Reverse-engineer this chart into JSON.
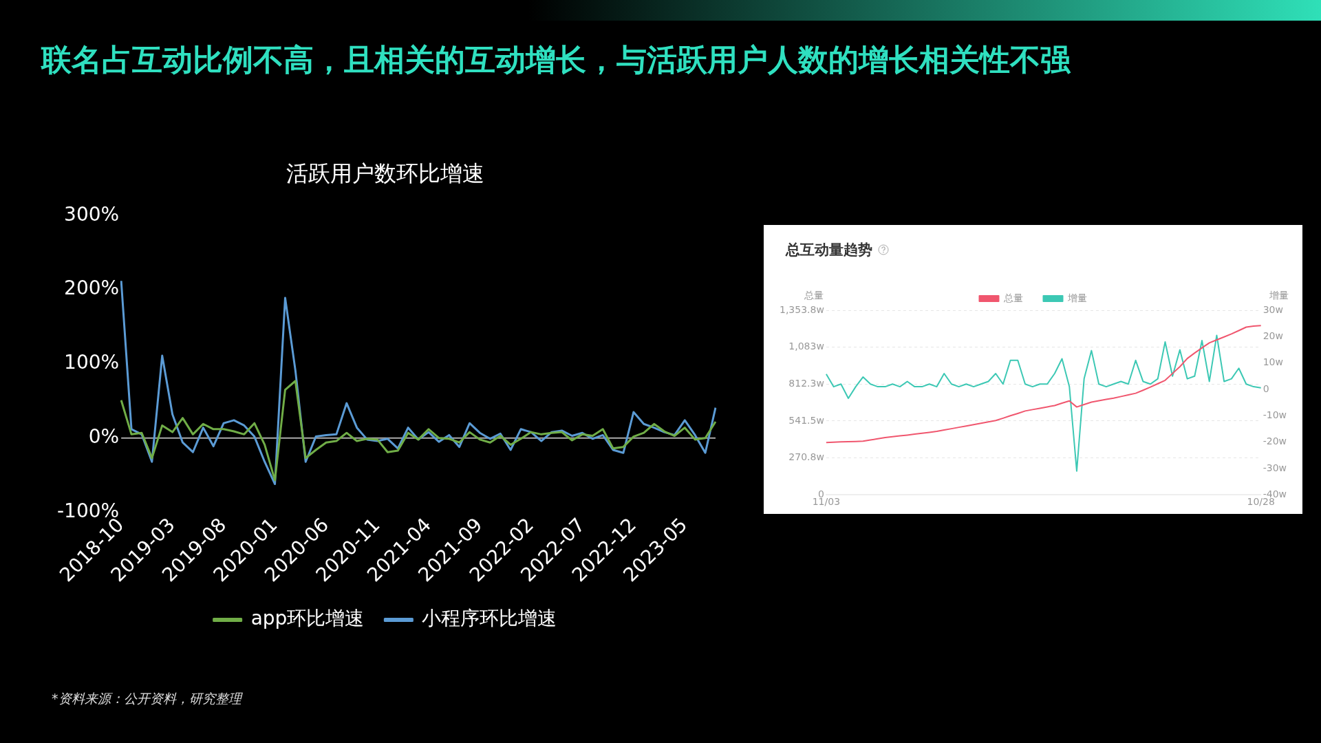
{
  "chart_data": [
    {
      "type": "line",
      "title": "活跃用户数环比增速",
      "categories": [
        "2018-10",
        null,
        null,
        null,
        null,
        "2019-03",
        null,
        null,
        null,
        null,
        "2019-08",
        null,
        null,
        null,
        null,
        "2020-01",
        null,
        null,
        null,
        null,
        "2020-06",
        null,
        null,
        null,
        null,
        "2020-11",
        null,
        null,
        null,
        null,
        "2021-04",
        null,
        null,
        null,
        null,
        "2021-09",
        null,
        null,
        null,
        null,
        "2022-02",
        null,
        null,
        null,
        null,
        "2022-07",
        null,
        null,
        null,
        null,
        "2022-12",
        null,
        null,
        null,
        null,
        "2023-05",
        null,
        null,
        null
      ],
      "series": [
        {
          "name": "app环比增速",
          "color": "#70ad47",
          "values": [
            51,
            5,
            7,
            -27,
            17,
            8,
            27,
            5,
            19,
            12,
            12,
            9,
            5,
            20,
            -9,
            -57,
            65,
            77,
            -27,
            -16,
            -6,
            -4,
            7,
            -4,
            -1,
            -2,
            -19,
            -17,
            7,
            -2,
            12,
            0,
            -1,
            -6,
            8,
            -2,
            -6,
            3,
            -9,
            -1,
            8,
            5,
            7,
            8,
            -3,
            5,
            3,
            12,
            -14,
            -12,
            2,
            7,
            19,
            9,
            3,
            14,
            -2,
            0,
            22
          ]
        },
        {
          "name": "小程序环比增速",
          "color": "#5b9bd5",
          "values": [
            212,
            12,
            5,
            -32,
            111,
            32,
            -6,
            -19,
            14,
            -11,
            20,
            24,
            17,
            2,
            -32,
            -62,
            189,
            91,
            -32,
            2,
            4,
            5,
            47,
            14,
            -2,
            -4,
            -1,
            -14,
            14,
            -2,
            8,
            -5,
            4,
            -12,
            20,
            7,
            -1,
            6,
            -16,
            12,
            8,
            -4,
            8,
            10,
            3,
            7,
            -1,
            4,
            -16,
            -20,
            35,
            19,
            14,
            8,
            4,
            24,
            4,
            -20,
            41
          ]
        }
      ],
      "ylim": [
        -100,
        300
      ],
      "yticks": [
        {
          "value": -100,
          "label": "-100%"
        },
        {
          "value": 0,
          "label": "0%"
        },
        {
          "value": 100,
          "label": "100%"
        },
        {
          "value": 200,
          "label": "200%"
        },
        {
          "value": 300,
          "label": "300%"
        }
      ],
      "legend": "bottom",
      "ref_lines": [
        {
          "axis": "y",
          "value": 0,
          "color": "#aaaaaa"
        }
      ],
      "annotations": [
        "联名占互动比例不高，且相关的互动增长，与活跃用户人数的增长相关性不强",
        "*资料来源：公开资料，研究整理"
      ]
    },
    {
      "type": "line",
      "title": "总互动量趋势",
      "ylabel": "总量",
      "y2label": "增量",
      "categories": [
        "11/03",
        null,
        null,
        null,
        null,
        null,
        null,
        null,
        null,
        null,
        null,
        null,
        null,
        null,
        null,
        null,
        null,
        null,
        null,
        null,
        null,
        null,
        null,
        null,
        null,
        null,
        null,
        null,
        null,
        null,
        null,
        null,
        null,
        null,
        null,
        null,
        null,
        null,
        null,
        null,
        null,
        null,
        null,
        null,
        null,
        null,
        null,
        null,
        null,
        null,
        null,
        null,
        null,
        null,
        null,
        null,
        null,
        null,
        null,
        "10/28"
      ],
      "series": [
        {
          "name": "总量",
          "color": "#f0566e",
          "values": [
            384,
            386,
            388,
            390,
            391,
            393,
            402,
            411,
            420,
            426,
            432,
            438,
            445,
            452,
            458,
            465,
            475,
            485,
            495,
            505,
            515,
            525,
            535,
            545,
            562,
            580,
            597,
            615,
            625,
            635,
            645,
            655,
            672,
            689,
            644,
            662,
            680,
            690,
            700,
            709,
            721,
            733,
            745,
            767,
            790,
            815,
            840,
            890,
            940,
            1000,
            1040,
            1078,
            1115,
            1137,
            1158,
            1180,
            1205,
            1230,
            1238,
            1242
          ]
        },
        {
          "name": "增量",
          "color": "#3cc8b4",
          "axis": "y2",
          "values": [
            5.8,
            1,
            2,
            -3.4,
            1,
            4.7,
            2,
            1,
            1,
            2,
            1,
            3,
            1,
            1,
            2,
            1,
            6,
            2,
            1,
            2,
            1,
            2,
            3,
            6,
            2,
            11,
            11,
            2,
            1,
            2,
            2,
            6,
            11.6,
            1,
            -31,
            4,
            14.7,
            2,
            1,
            2,
            3,
            2,
            11,
            3,
            2,
            4,
            18,
            5,
            15,
            4,
            5,
            18.5,
            3,
            20.5,
            3,
            4,
            8,
            2,
            1,
            0.6
          ]
        }
      ],
      "ylim": [
        0,
        1353.8
      ],
      "yticks": [
        0,
        {
          "value": 270.8,
          "label": "270.8w"
        },
        {
          "value": 541.5,
          "label": "541.5w"
        },
        {
          "value": 812.3,
          "label": "812.3w"
        },
        {
          "value": 1083,
          "label": "1,083w"
        },
        {
          "value": 1353.8,
          "label": "1,353.8w"
        }
      ],
      "y2lim": [
        -40,
        30
      ],
      "y2ticks": [
        {
          "value": -40,
          "label": "-40w"
        },
        {
          "value": -30,
          "label": "-30w"
        },
        {
          "value": -20,
          "label": "-20w"
        },
        {
          "value": -10,
          "label": "-10w"
        },
        0,
        {
          "value": 10,
          "label": "10w"
        },
        {
          "value": 20,
          "label": "20w"
        },
        {
          "value": 30,
          "label": "30w"
        }
      ],
      "grid": "y",
      "legend": "top"
    }
  ]
}
